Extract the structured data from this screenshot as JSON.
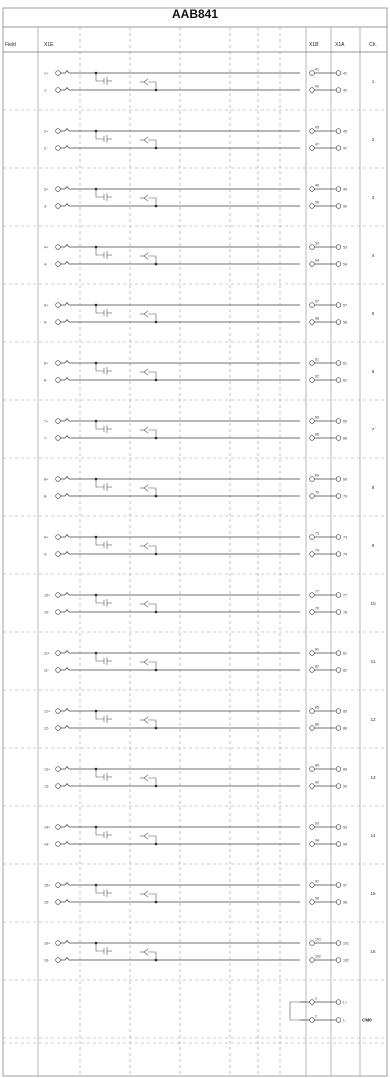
{
  "title": "AAB841",
  "headers": {
    "field": "Field",
    "col_x1": "X1E",
    "col_x2": "X1B",
    "col_x3": "X1A",
    "channel": "Ch."
  },
  "channels": [
    {
      "ch": "1",
      "left": [
        "1+",
        "1-"
      ],
      "mid": [
        "41",
        "42"
      ],
      "right": [
        "41",
        "42"
      ]
    },
    {
      "ch": "2",
      "left": [
        "2+",
        "2-"
      ],
      "mid": [
        "45",
        "47"
      ],
      "right": [
        "45",
        "47"
      ]
    },
    {
      "ch": "3",
      "left": [
        "3+",
        "3-"
      ],
      "mid": [
        "49",
        "50"
      ],
      "right": [
        "49",
        "50"
      ]
    },
    {
      "ch": "4",
      "left": [
        "4+",
        "4-"
      ],
      "mid": [
        "53",
        "54"
      ],
      "right": [
        "53",
        "54"
      ]
    },
    {
      "ch": "5",
      "left": [
        "5+",
        "5-"
      ],
      "mid": [
        "57",
        "58"
      ],
      "right": [
        "57",
        "58"
      ]
    },
    {
      "ch": "6",
      "left": [
        "6+",
        "6-"
      ],
      "mid": [
        "61",
        "62"
      ],
      "right": [
        "61",
        "62"
      ]
    },
    {
      "ch": "7",
      "left": [
        "7+",
        "7-"
      ],
      "mid": [
        "65",
        "66"
      ],
      "right": [
        "65",
        "66"
      ]
    },
    {
      "ch": "8",
      "left": [
        "8+",
        "8-"
      ],
      "mid": [
        "69",
        "70"
      ],
      "right": [
        "69",
        "70"
      ]
    },
    {
      "ch": "9",
      "left": [
        "9+",
        "9-"
      ],
      "mid": [
        "73",
        "74"
      ],
      "right": [
        "73",
        "74"
      ]
    },
    {
      "ch": "10",
      "left": [
        "10+",
        "10-"
      ],
      "mid": [
        "77",
        "78"
      ],
      "right": [
        "77",
        "78"
      ]
    },
    {
      "ch": "11",
      "left": [
        "11+",
        "11-"
      ],
      "mid": [
        "81",
        "82"
      ],
      "right": [
        "81",
        "82"
      ]
    },
    {
      "ch": "12",
      "left": [
        "12+",
        "12-"
      ],
      "mid": [
        "85",
        "86"
      ],
      "right": [
        "85",
        "86"
      ]
    },
    {
      "ch": "13",
      "left": [
        "13+",
        "13-"
      ],
      "mid": [
        "89",
        "90"
      ],
      "right": [
        "89",
        "90"
      ]
    },
    {
      "ch": "14",
      "left": [
        "14+",
        "14-"
      ],
      "mid": [
        "93",
        "94"
      ],
      "right": [
        "93",
        "94"
      ]
    },
    {
      "ch": "15",
      "left": [
        "15+",
        "15-"
      ],
      "mid": [
        "97",
        "98"
      ],
      "right": [
        "97",
        "98"
      ]
    },
    {
      "ch": "16",
      "left": [
        "16+",
        "16-"
      ],
      "mid": [
        "101",
        "102"
      ],
      "right": [
        "101",
        "102"
      ]
    }
  ],
  "common": {
    "label": "CM0",
    "mid": [
      "1",
      "2"
    ],
    "right": [
      "L+",
      "L-"
    ]
  }
}
